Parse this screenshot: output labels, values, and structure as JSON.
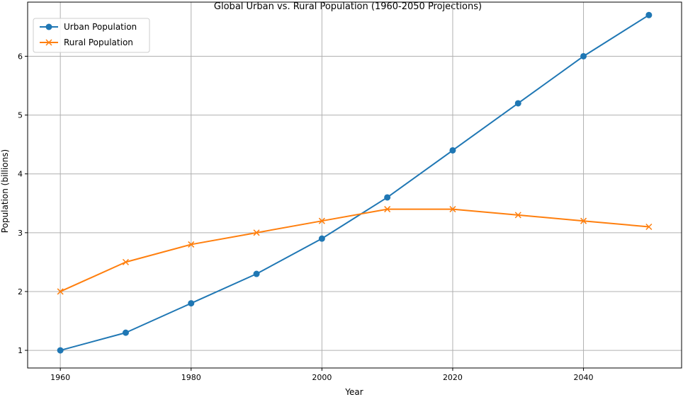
{
  "chart_data": {
    "type": "line",
    "title": "Global Urban vs. Rural Population (1960-2050 Projections)",
    "xlabel": "Year",
    "ylabel": "Population (billions)",
    "x": [
      1960,
      1970,
      1980,
      1990,
      2000,
      2010,
      2020,
      2030,
      2040,
      2050
    ],
    "xlim": [
      1955,
      2055
    ],
    "ylim": [
      0.7,
      6.92
    ],
    "xticks": [
      1960,
      1980,
      2000,
      2020,
      2040
    ],
    "yticks": [
      1,
      2,
      3,
      4,
      5,
      6
    ],
    "grid": true,
    "legend_position": "top-left",
    "series": [
      {
        "name": "Urban Population",
        "values": [
          1.0,
          1.3,
          1.8,
          2.3,
          2.9,
          3.6,
          4.4,
          5.2,
          6.0,
          6.7
        ],
        "color": "#1f77b4",
        "marker": "circle"
      },
      {
        "name": "Rural Population",
        "values": [
          2.0,
          2.5,
          2.8,
          3.0,
          3.2,
          3.4,
          3.4,
          3.3,
          3.2,
          3.1
        ],
        "color": "#ff7f0e",
        "marker": "x"
      }
    ]
  }
}
